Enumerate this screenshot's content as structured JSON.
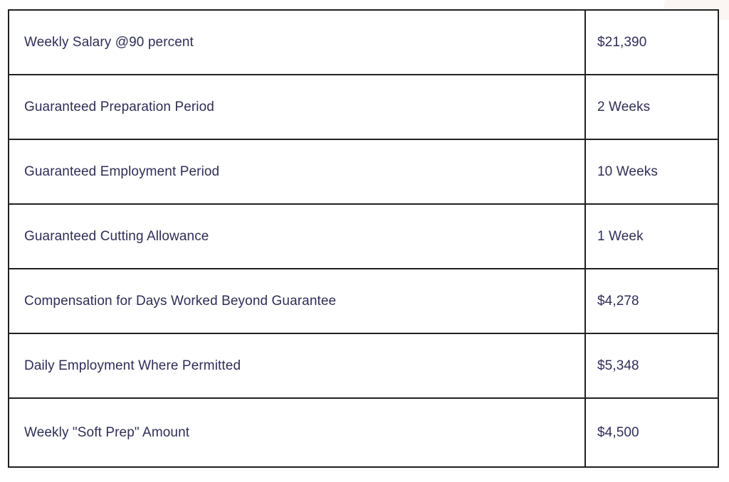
{
  "table": {
    "text_color": "#2e2e58",
    "border_color": "#212121",
    "background_color": "#ffffff",
    "rows": [
      {
        "label": "Weekly Salary @90 percent",
        "value": "$21,390"
      },
      {
        "label": "Guaranteed Preparation Period",
        "value": "2 Weeks"
      },
      {
        "label": "Guaranteed Employment Period",
        "value": "10 Weeks"
      },
      {
        "label": "Guaranteed Cutting Allowance",
        "value": "1 Week"
      },
      {
        "label": "Compensation for Days Worked Beyond Guarantee",
        "value": "$4,278"
      },
      {
        "label": "Daily Employment Where Permitted",
        "value": "$5,348"
      },
      {
        "label": "Weekly \"Soft Prep\" Amount",
        "value": "$4,500"
      }
    ]
  }
}
